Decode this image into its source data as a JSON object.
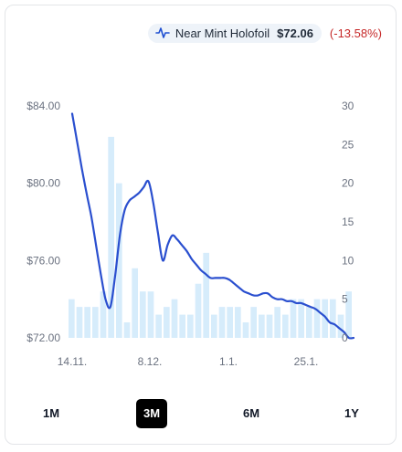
{
  "legend": {
    "label": "Near Mint Holofoil",
    "price": "$72.06",
    "change": "(-13.58%)",
    "icon": "line-chart-icon",
    "accent_color": "#1f4fd1",
    "change_color": "#c62828"
  },
  "ranges": {
    "items": [
      "1M",
      "3M",
      "6M",
      "1Y"
    ],
    "selected": "3M"
  },
  "chart_data": {
    "type": "line",
    "title": "",
    "xlabel": "",
    "ylabel": "",
    "x_tick_labels": [
      "14.11.",
      "8.12.",
      "1.1.",
      "25.1."
    ],
    "ylim": [
      72,
      84
    ],
    "y_ticks": [
      "$72.00",
      "$76.00",
      "$80.00",
      "$84.00"
    ],
    "y2lim": [
      0,
      30
    ],
    "y2_ticks": [
      "0",
      "5",
      "10",
      "15",
      "20",
      "25",
      "30"
    ],
    "grid": false,
    "series": [
      {
        "type": "line",
        "axis": "left",
        "color": "#2a4fcf",
        "values": [
          83.6,
          82.2,
          80.8,
          79.5,
          78.3,
          76.8,
          75.3,
          74.0,
          73.6,
          75.2,
          77.3,
          78.6,
          79.1,
          79.3,
          79.5,
          79.8,
          80.1,
          79.0,
          77.4,
          76.0,
          76.8,
          77.3,
          77.1,
          76.8,
          76.5,
          76.1,
          75.8,
          75.5,
          75.3,
          75.1,
          75.1,
          75.1,
          75.1,
          75.0,
          74.8,
          74.6,
          74.4,
          74.3,
          74.2,
          74.2,
          74.3,
          74.3,
          74.1,
          74.0,
          74.0,
          73.9,
          73.9,
          73.8,
          73.8,
          73.7,
          73.6,
          73.5,
          73.3,
          73.1,
          72.8,
          72.7,
          72.5,
          72.3,
          72.0,
          72.0
        ]
      },
      {
        "type": "bar",
        "axis": "right",
        "color": "#d6ecfb",
        "values": [
          5,
          4,
          4,
          4,
          6,
          26,
          20,
          2,
          9,
          6,
          6,
          3,
          4,
          5,
          3,
          3,
          7,
          11,
          3,
          4,
          4,
          4,
          2,
          4,
          3,
          3,
          4,
          3,
          5,
          5,
          4,
          5,
          5,
          5,
          3,
          6
        ]
      }
    ]
  }
}
